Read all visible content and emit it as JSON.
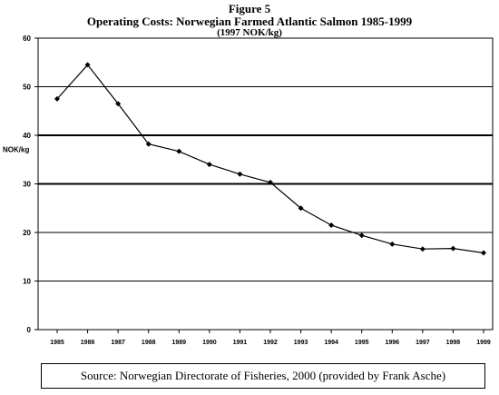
{
  "figure_label": "Figure 5",
  "title": "Operating Costs: Norwegian Farmed Atlantic Salmon 1985-1999",
  "subtitle": "(1997 NOK/kg)",
  "source_text": "Source: Norwegian Directorate of Fisheries, 2000 (provided by Frank Asche)",
  "chart_data": {
    "type": "line",
    "title": "Operating Costs: Norwegian Farmed Atlantic Salmon 1985-1999",
    "subtitle": "(1997 NOK/kg)",
    "xlabel": "",
    "ylabel": "NOK/kg",
    "categories": [
      "1985",
      "1986",
      "1987",
      "1988",
      "1989",
      "1990",
      "1991",
      "1992",
      "1993",
      "1994",
      "1995",
      "1996",
      "1997",
      "1998",
      "1999"
    ],
    "series": [
      {
        "values": [
          47.5,
          54.5,
          46.5,
          38.2,
          36.7,
          34.0,
          32.0,
          30.3,
          25.0,
          21.5,
          19.4,
          17.6,
          16.6,
          16.7,
          15.8
        ]
      }
    ],
    "ylim": [
      0,
      60
    ],
    "yticks": [
      0,
      10,
      20,
      30,
      40,
      50,
      60
    ],
    "grid": true,
    "colors": {
      "line": "#000000",
      "grid": "#000000",
      "background": "#ffffff"
    }
  }
}
